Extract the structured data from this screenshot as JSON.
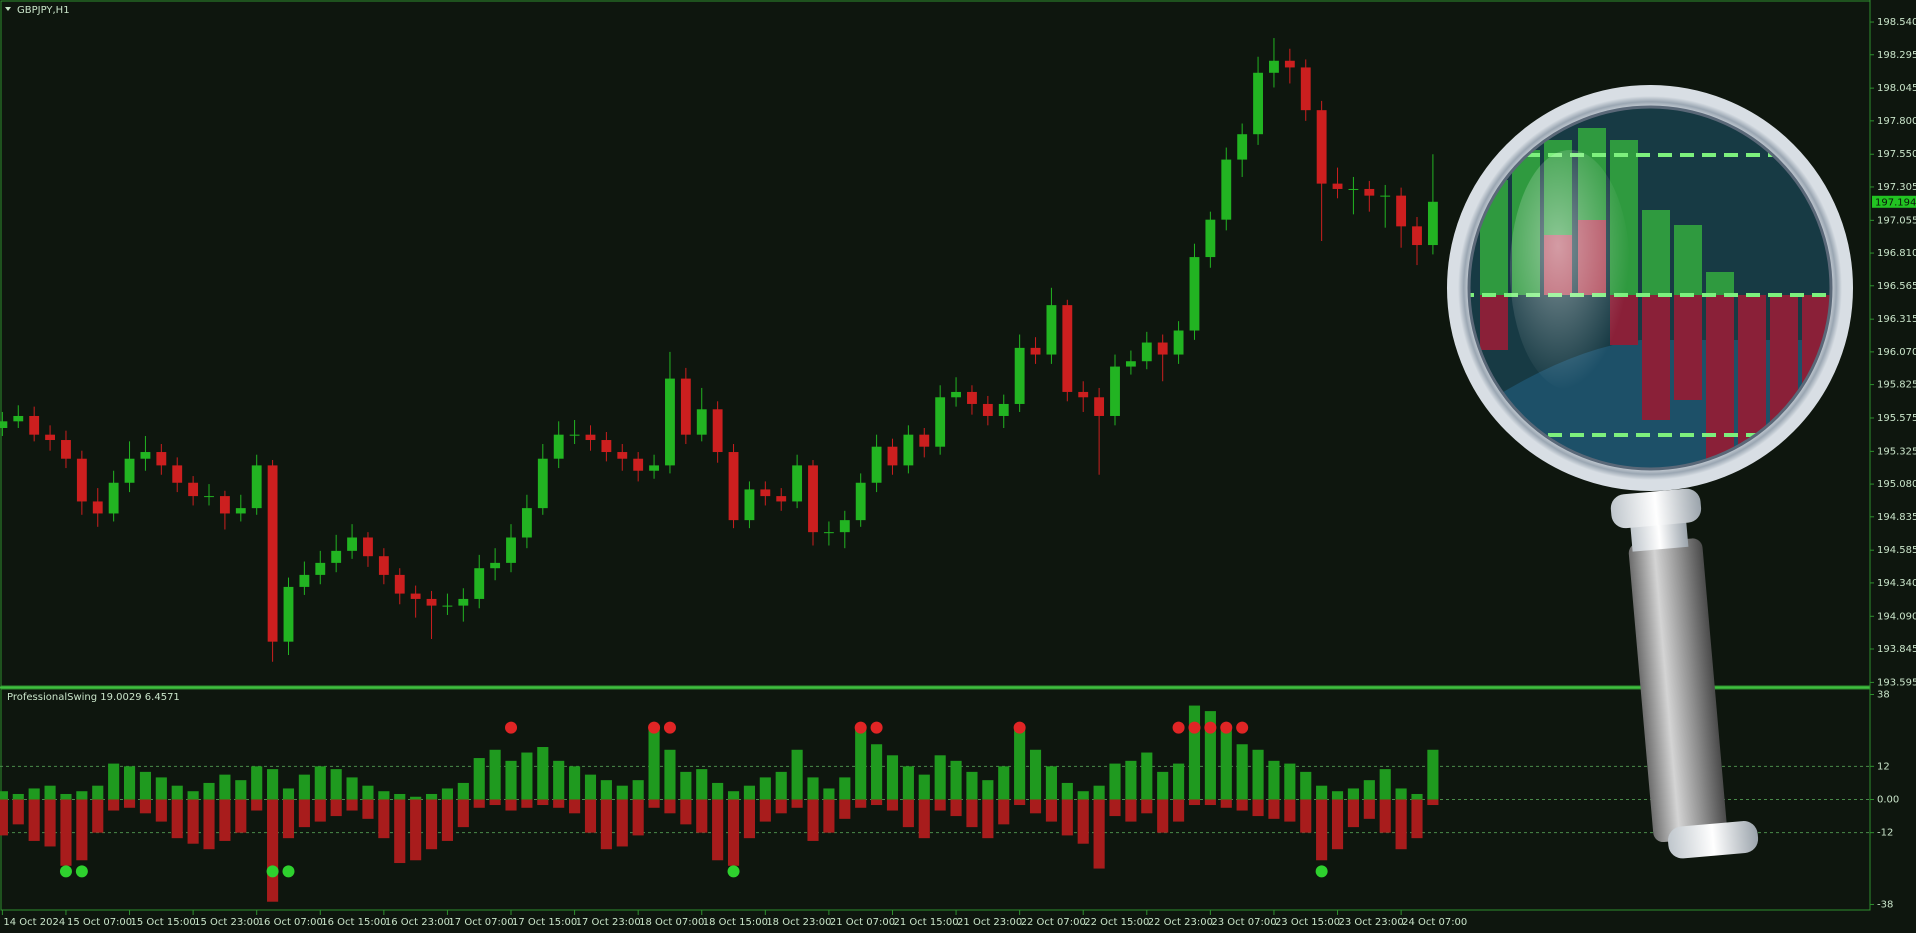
{
  "chart_data": [
    {
      "type": "candlestick",
      "title": "GBPJPY,H1",
      "up_color": "#22b422",
      "down_color": "#cc1f1f",
      "grid": false,
      "xlim": [
        -0.15,
        117.5
      ],
      "xticks": [
        {
          "value": 0,
          "label": "14 Oct 2024"
        },
        {
          "value": 4,
          "label": "15 Oct 07:00"
        },
        {
          "value": 8,
          "label": "15 Oct 15:00"
        },
        {
          "value": 12,
          "label": "15 Oct 23:00"
        },
        {
          "value": 16,
          "label": "16 Oct 07:00"
        },
        {
          "value": 20,
          "label": "16 Oct 15:00"
        },
        {
          "value": 24,
          "label": "16 Oct 23:00"
        },
        {
          "value": 28,
          "label": "17 Oct 07:00"
        },
        {
          "value": 32,
          "label": "17 Oct 15:00"
        },
        {
          "value": 36,
          "label": "17 Oct 23:00"
        },
        {
          "value": 40,
          "label": "18 Oct 07:00"
        },
        {
          "value": 44,
          "label": "18 Oct 15:00"
        },
        {
          "value": 48,
          "label": "18 Oct 23:00"
        },
        {
          "value": 52,
          "label": "21 Oct 07:00"
        },
        {
          "value": 56,
          "label": "21 Oct 15:00"
        },
        {
          "value": 60,
          "label": "21 Oct 23:00"
        },
        {
          "value": 64,
          "label": "22 Oct 07:00"
        },
        {
          "value": 68,
          "label": "22 Oct 15:00"
        },
        {
          "value": 72,
          "label": "22 Oct 23:00"
        },
        {
          "value": 76,
          "label": "23 Oct 07:00"
        },
        {
          "value": 80,
          "label": "23 Oct 15:00"
        },
        {
          "value": 84,
          "label": "23 Oct 23:00"
        },
        {
          "value": 88,
          "label": "24 Oct 07:00"
        }
      ],
      "ylim": [
        193.568,
        198.705
      ],
      "yticks": [
        {
          "value": 198.54,
          "label": "198.540"
        },
        198.295,
        198.045,
        {
          "value": 197.8,
          "label": "197.800"
        },
        {
          "value": 197.55,
          "label": "197.550"
        },
        197.305,
        197.055,
        {
          "value": 196.81,
          "label": "196.810"
        },
        196.565,
        196.315,
        {
          "value": 196.07,
          "label": "196.070"
        },
        195.825,
        195.575,
        195.325,
        {
          "value": 195.08,
          "label": "195.080"
        },
        194.835,
        194.585,
        {
          "value": 194.34,
          "label": "194.340"
        },
        {
          "value": 194.09,
          "label": "194.090"
        },
        193.845,
        193.595
      ],
      "open": [
        195.5,
        195.55,
        195.59,
        195.45,
        195.41,
        195.27,
        194.95,
        194.86,
        195.09,
        195.27,
        195.32,
        195.22,
        195.09,
        194.99,
        194.99,
        194.86,
        194.9,
        195.22,
        193.9,
        194.31,
        194.4,
        194.49,
        194.58,
        194.68,
        194.54,
        194.4,
        194.26,
        194.22,
        194.17,
        194.17,
        194.22,
        194.45,
        194.49,
        194.68,
        194.9,
        195.27,
        195.45,
        195.45,
        195.41,
        195.32,
        195.27,
        195.18,
        195.22,
        195.87,
        195.45,
        195.64,
        195.32,
        194.81,
        195.04,
        194.99,
        194.95,
        195.22,
        194.72,
        194.72,
        194.81,
        195.09,
        195.36,
        195.22,
        195.45,
        195.36,
        195.73,
        195.77,
        195.68,
        195.59,
        195.68,
        196.1,
        196.05,
        196.42,
        195.77,
        195.73,
        195.59,
        195.96,
        196.0,
        196.14,
        196.05,
        196.23,
        196.78,
        197.06,
        197.51,
        197.7,
        198.16,
        198.25,
        198.2,
        197.88,
        197.33,
        197.29,
        197.29,
        197.24,
        197.24,
        197.01,
        196.87
      ],
      "high": [
        195.62,
        195.67,
        195.66,
        195.52,
        195.48,
        195.33,
        195.05,
        195.18,
        195.4,
        195.44,
        195.38,
        195.28,
        195.14,
        195.08,
        195.03,
        195.0,
        195.3,
        195.26,
        194.38,
        194.5,
        194.58,
        194.7,
        194.78,
        194.72,
        194.6,
        194.45,
        194.32,
        194.28,
        194.26,
        194.3,
        194.55,
        194.6,
        194.78,
        195.0,
        195.38,
        195.55,
        195.56,
        195.52,
        195.47,
        195.38,
        195.32,
        195.3,
        196.07,
        195.95,
        195.8,
        195.7,
        195.38,
        195.1,
        195.1,
        195.05,
        195.3,
        195.26,
        194.8,
        194.88,
        195.16,
        195.45,
        195.42,
        195.52,
        195.5,
        195.82,
        195.88,
        195.82,
        195.74,
        195.75,
        196.2,
        196.18,
        196.55,
        196.46,
        195.85,
        195.8,
        196.05,
        196.08,
        196.22,
        196.2,
        196.3,
        196.88,
        197.12,
        197.6,
        197.78,
        198.28,
        198.42,
        198.34,
        198.26,
        197.95,
        197.45,
        197.38,
        197.35,
        197.32,
        197.3,
        197.08,
        197.55
      ],
      "low": [
        195.44,
        195.5,
        195.4,
        195.33,
        195.2,
        194.85,
        194.76,
        194.8,
        195.02,
        195.18,
        195.15,
        195.02,
        194.92,
        194.92,
        194.74,
        194.8,
        194.85,
        193.75,
        193.8,
        194.25,
        194.33,
        194.42,
        194.52,
        194.46,
        194.33,
        194.18,
        194.08,
        193.92,
        194.1,
        194.05,
        194.15,
        194.36,
        194.42,
        194.6,
        194.85,
        195.2,
        195.38,
        195.33,
        195.25,
        195.18,
        195.1,
        195.12,
        195.16,
        195.38,
        195.4,
        195.24,
        194.75,
        194.75,
        194.92,
        194.88,
        194.9,
        194.62,
        194.62,
        194.6,
        194.76,
        195.02,
        195.15,
        195.16,
        195.28,
        195.3,
        195.66,
        195.6,
        195.52,
        195.5,
        195.62,
        195.98,
        195.98,
        195.7,
        195.62,
        195.15,
        195.52,
        195.9,
        195.94,
        195.85,
        195.98,
        196.16,
        196.7,
        196.98,
        197.38,
        197.62,
        198.05,
        198.08,
        197.8,
        196.9,
        197.22,
        197.1,
        197.12,
        197.0,
        196.85,
        196.72,
        196.8
      ],
      "close": [
        195.55,
        195.59,
        195.45,
        195.41,
        195.27,
        194.95,
        194.86,
        195.09,
        195.27,
        195.32,
        195.22,
        195.09,
        194.99,
        194.99,
        194.86,
        194.9,
        195.22,
        193.9,
        194.31,
        194.4,
        194.49,
        194.58,
        194.68,
        194.54,
        194.4,
        194.26,
        194.22,
        194.17,
        194.17,
        194.22,
        194.45,
        194.49,
        194.68,
        194.9,
        195.27,
        195.45,
        195.45,
        195.41,
        195.32,
        195.27,
        195.18,
        195.22,
        195.87,
        195.45,
        195.64,
        195.32,
        194.81,
        195.04,
        194.99,
        194.95,
        195.22,
        194.72,
        194.72,
        194.81,
        195.09,
        195.36,
        195.22,
        195.45,
        195.36,
        195.73,
        195.77,
        195.68,
        195.59,
        195.68,
        196.1,
        196.05,
        196.42,
        195.77,
        195.73,
        195.59,
        195.96,
        196.0,
        196.14,
        196.05,
        196.23,
        196.78,
        197.06,
        197.51,
        197.7,
        198.16,
        198.25,
        198.2,
        197.88,
        197.33,
        197.29,
        197.29,
        197.24,
        197.24,
        197.01,
        196.87,
        197.194
      ]
    },
    {
      "type": "bar",
      "title": "ProfessionalSwing 19.0029 6.4571",
      "grid": true,
      "ylim": [
        -40,
        40
      ],
      "yticks": [
        38,
        12,
        {
          "value": 0,
          "label": "0.00"
        },
        -12,
        -38
      ],
      "series": [
        {
          "color": "#1f9a1f",
          "values": [
            3,
            2,
            4,
            5,
            2,
            3,
            5,
            13,
            12,
            10,
            8,
            5,
            3,
            6,
            9,
            7,
            12,
            11,
            4,
            9,
            12,
            11,
            8,
            5,
            3,
            2,
            1,
            2,
            4,
            6,
            15,
            18,
            14,
            17,
            19,
            14,
            12,
            9,
            7,
            5,
            7,
            27,
            18,
            10,
            11,
            6,
            3,
            5,
            8,
            10,
            18,
            8,
            4,
            8,
            26,
            20,
            16,
            12,
            9,
            16,
            14,
            10,
            7,
            12,
            26,
            18,
            12,
            6,
            3,
            5,
            13,
            14,
            17,
            10,
            13,
            34,
            32,
            26,
            20,
            18,
            14,
            13,
            10,
            5,
            3,
            4,
            7,
            11,
            4,
            2,
            18
          ]
        },
        {
          "color": "#a81c1c",
          "values": [
            -13,
            -9,
            -15,
            -17,
            -24,
            -22,
            -12,
            -4,
            -3,
            -5,
            -8,
            -14,
            -16,
            -18,
            -15,
            -12,
            -4,
            -37,
            -14,
            -10,
            -8,
            -6,
            -4,
            -7,
            -14,
            -23,
            -22,
            -18,
            -15,
            -10,
            -3,
            -2,
            -4,
            -3,
            -2,
            -3,
            -5,
            -12,
            -18,
            -17,
            -13,
            -3,
            -5,
            -9,
            -12,
            -22,
            -24,
            -14,
            -8,
            -5,
            -3,
            -15,
            -12,
            -7,
            -3,
            -2,
            -4,
            -10,
            -14,
            -4,
            -6,
            -10,
            -14,
            -9,
            -2,
            -5,
            -8,
            -13,
            -16,
            -25,
            -6,
            -8,
            -5,
            -12,
            -8,
            -2,
            -2,
            -3,
            -4,
            -6,
            -7,
            -8,
            -12,
            -22,
            -18,
            -10,
            -7,
            -12,
            -18,
            -14,
            -2
          ]
        }
      ],
      "markers": [
        {
          "color": "#2ed12e",
          "x": [
            4,
            5,
            17,
            18,
            46,
            83
          ],
          "y": [
            -26,
            -26,
            -26,
            -26,
            -26,
            -26
          ]
        },
        {
          "color": "#e02525",
          "x": [
            32,
            41,
            42,
            54,
            55,
            64,
            74,
            75,
            76,
            77,
            78
          ],
          "y": [
            26,
            26,
            26,
            26,
            26,
            26,
            26,
            26,
            26,
            26,
            26
          ]
        }
      ]
    }
  ]
}
